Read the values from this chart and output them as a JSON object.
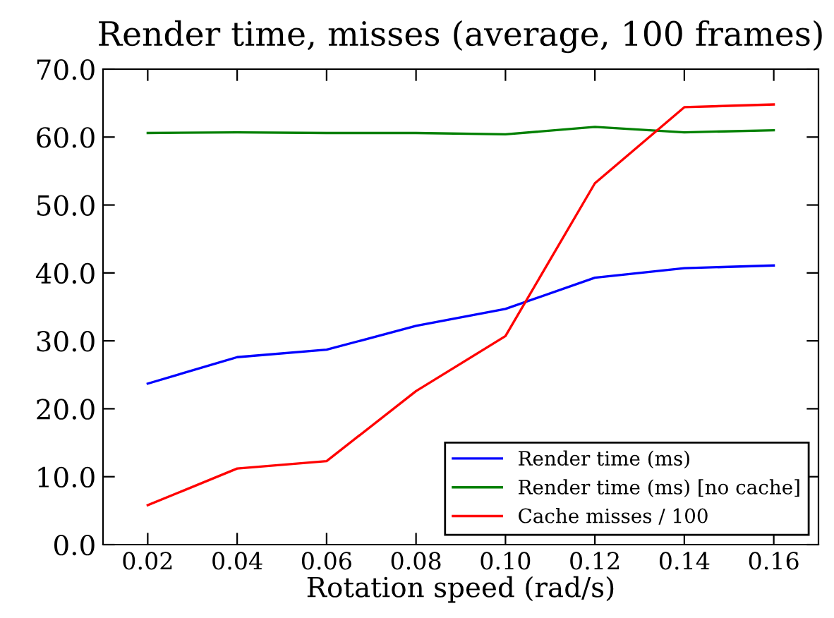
{
  "chart_data": {
    "type": "line",
    "title": "Render time, misses (average, 100 frames)",
    "xlabel": "Rotation speed (rad/s)",
    "x": [
      0.02,
      0.04,
      0.06,
      0.08,
      0.1,
      0.12,
      0.14,
      0.16
    ],
    "series": [
      {
        "name": "Render time (ms)",
        "color": "#0000ff",
        "values": [
          23.7,
          27.6,
          28.7,
          32.2,
          34.7,
          39.3,
          40.7,
          41.1
        ]
      },
      {
        "name": "Render time (ms) [no cache]",
        "color": "#008000",
        "values": [
          60.6,
          60.7,
          60.6,
          60.6,
          60.4,
          61.5,
          60.7,
          61.0
        ]
      },
      {
        "name": "Cache misses / 100",
        "color": "#ff0000",
        "values": [
          5.8,
          11.2,
          12.3,
          22.6,
          30.7,
          53.2,
          64.4,
          64.8
        ]
      }
    ],
    "xlim": [
      0.01,
      0.17
    ],
    "xticks": [
      0.02,
      0.04,
      0.06,
      0.08,
      {
        "value": 0.1,
        "label": "0.10"
      },
      0.12,
      0.14,
      0.16
    ],
    "ylim": [
      0,
      70
    ],
    "yticks": [
      {
        "value": 0,
        "label": "0.0"
      },
      {
        "value": 10,
        "label": "10.0"
      },
      {
        "value": 20,
        "label": "20.0"
      },
      {
        "value": 30,
        "label": "30.0"
      },
      {
        "value": 40,
        "label": "40.0"
      },
      {
        "value": 50,
        "label": "50.0"
      },
      {
        "value": 60,
        "label": "60.0"
      },
      {
        "value": 70,
        "label": "70.0"
      }
    ],
    "legend": "bottom right",
    "grid": false,
    "line_style": "solid",
    "marker": "none"
  }
}
